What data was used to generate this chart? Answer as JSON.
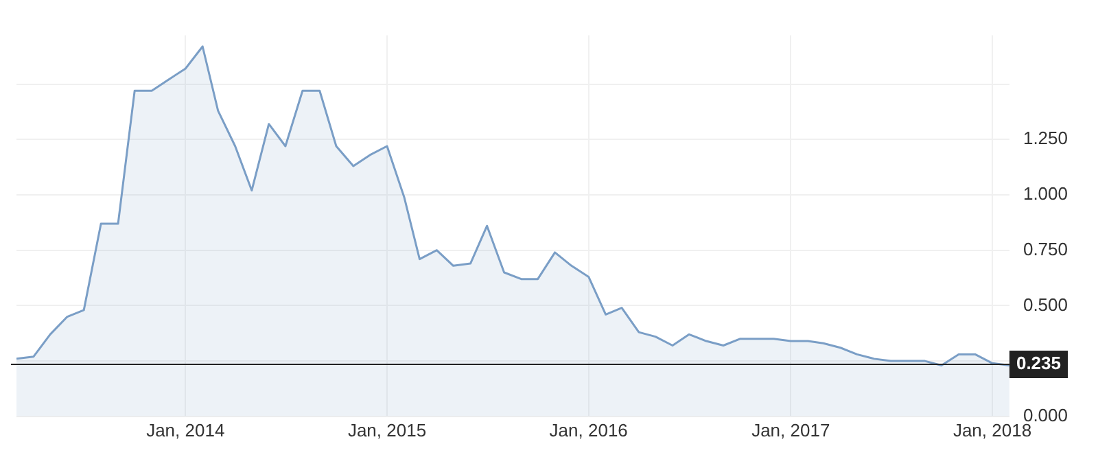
{
  "chart_data": {
    "type": "area",
    "x": [
      "2013-03",
      "2013-04",
      "2013-05",
      "2013-06",
      "2013-07",
      "2013-08",
      "2013-09",
      "2013-10",
      "2013-11",
      "2013-12",
      "2014-01",
      "2014-02",
      "2014-03",
      "2014-04",
      "2014-05",
      "2014-06",
      "2014-07",
      "2014-08",
      "2014-09",
      "2014-10",
      "2014-11",
      "2014-12",
      "2015-01",
      "2015-02",
      "2015-03",
      "2015-04",
      "2015-05",
      "2015-06",
      "2015-07",
      "2015-08",
      "2015-09",
      "2015-10",
      "2015-11",
      "2015-12",
      "2016-01",
      "2016-02",
      "2016-03",
      "2016-04",
      "2016-05",
      "2016-06",
      "2016-07",
      "2016-08",
      "2016-09",
      "2016-10",
      "2016-11",
      "2016-12",
      "2017-01",
      "2017-02",
      "2017-03",
      "2017-04",
      "2017-05",
      "2017-06",
      "2017-07",
      "2017-08",
      "2017-09",
      "2017-10",
      "2017-11",
      "2017-12",
      "2018-01",
      "2018-02"
    ],
    "series": [
      {
        "color": "#7a9ec6",
        "values": [
          0.26,
          0.27,
          0.37,
          0.45,
          0.48,
          0.87,
          0.87,
          1.47,
          1.47,
          1.52,
          1.57,
          1.67,
          1.38,
          1.22,
          1.02,
          1.32,
          1.22,
          1.47,
          1.47,
          1.22,
          1.13,
          1.18,
          1.22,
          0.99,
          0.71,
          0.75,
          0.68,
          0.69,
          0.86,
          0.65,
          0.62,
          0.62,
          0.74,
          0.68,
          0.63,
          0.46,
          0.49,
          0.38,
          0.36,
          0.32,
          0.37,
          0.34,
          0.32,
          0.35,
          0.35,
          0.35,
          0.34,
          0.34,
          0.33,
          0.31,
          0.28,
          0.26,
          0.25,
          0.25,
          0.25,
          0.23,
          0.28,
          0.28,
          0.24,
          0.23
        ]
      }
    ],
    "xlim": [
      "2013-03",
      "2018-02"
    ],
    "xticks": [
      {
        "value": "2014-01",
        "label": "Jan, 2014"
      },
      {
        "value": "2015-01",
        "label": "Jan, 2015"
      },
      {
        "value": "2016-01",
        "label": "Jan, 2016"
      },
      {
        "value": "2017-01",
        "label": "Jan, 2017"
      },
      {
        "value": "2018-01",
        "label": "Jan, 2018"
      }
    ],
    "ylim": [
      0,
      1.72
    ],
    "yticks": [
      {
        "value": 0,
        "label": "0.000"
      },
      {
        "value": 0.25,
        "label": null
      },
      {
        "value": 0.5,
        "label": "0.500"
      },
      {
        "value": 0.75,
        "label": "0.750"
      },
      {
        "value": 1,
        "label": "1.000"
      },
      {
        "value": 1.25,
        "label": "1.250"
      },
      {
        "value": 1.5,
        "label": null
      }
    ],
    "ref_lines": [
      {
        "axis": "y",
        "value": 0.235,
        "label": "0.235",
        "color": "#222222"
      }
    ],
    "grid": true
  }
}
